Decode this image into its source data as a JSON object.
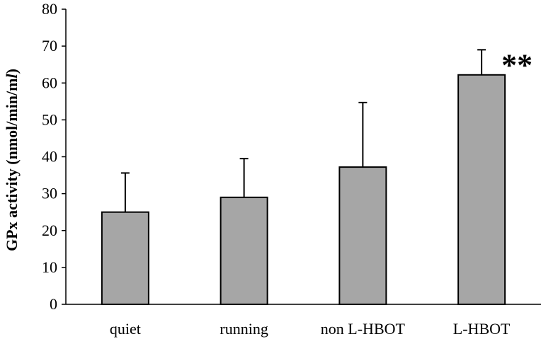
{
  "chart_data": {
    "type": "bar",
    "categories": [
      "quiet",
      "running",
      "non L-HBOT",
      "L-HBOT"
    ],
    "values": [
      25,
      29,
      37.2,
      62.2
    ],
    "error_upper": [
      35.6,
      39.5,
      54.7,
      69
    ],
    "ylabel_prefix": "GPx activity (nmol/min/m",
    "ylabel_italic": "l",
    "ylabel_suffix": ")",
    "xlabel": "",
    "ylim": [
      0,
      80
    ],
    "yticks": [
      0,
      10,
      20,
      30,
      40,
      50,
      60,
      70,
      80
    ],
    "grid": false,
    "annotations": [
      {
        "category": "L-HBOT",
        "text": "**"
      }
    ],
    "colors": {
      "bar_fill": "#a6a6a6",
      "bar_stroke": "#000000",
      "axis": "#000000"
    }
  }
}
